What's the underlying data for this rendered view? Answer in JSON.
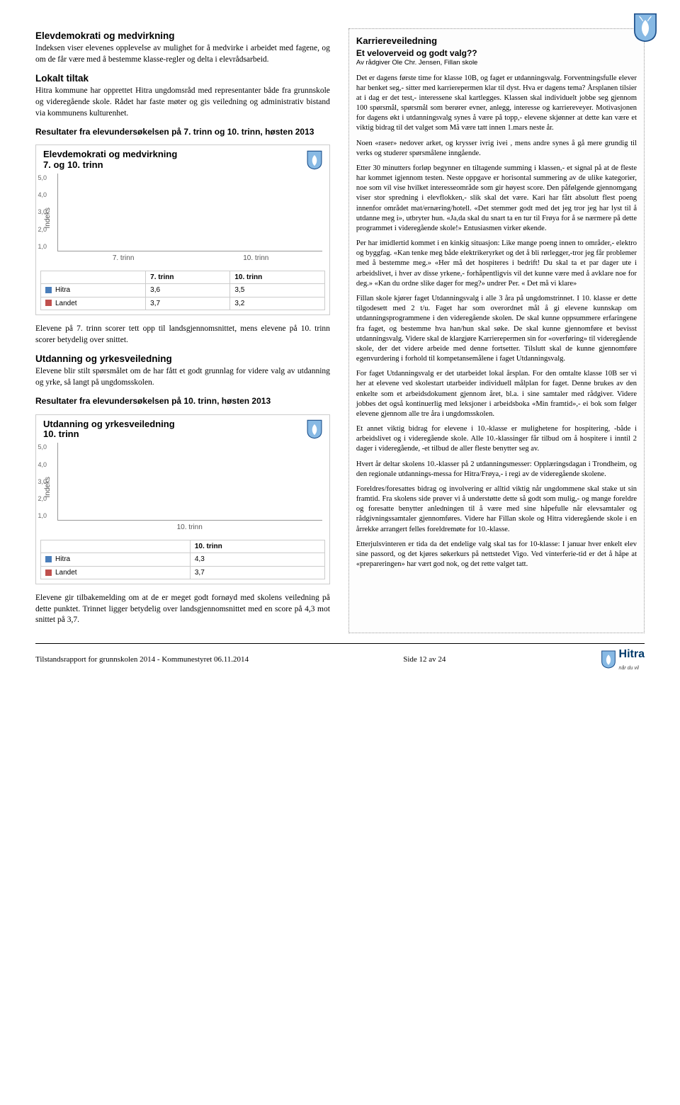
{
  "header_logo_colors": {
    "shield": "#87b9e4",
    "outline": "#1c4f8b",
    "deer": "#ffffff"
  },
  "left": {
    "sec1_title": "Elevdemokrati og medvirkning",
    "sec1_p1": "Indeksen viser elevenes opplevelse av mulighet for å medvirke i arbeidet med fagene, og om de får være med å bestemme klasse-regler og delta i elevrådsarbeid.",
    "sec1_sub": "Lokalt tiltak",
    "sec1_p2": "Hitra kommune har opprettet Hitra ungdomsråd med representanter både fra grunnskole og videregående skole. Rådet har faste møter og gis veiledning og administrativ bistand via kommunens kulturenhet.",
    "sec1_res": "Resultater fra elevundersøkelsen på 7. trinn og 10. trinn, høsten 2013",
    "chart1": {
      "title_line1": "Elevdemokrati og medvirkning",
      "title_line2": "7. og 10. trinn",
      "ylabel": "Indeks",
      "ylim_max": 5.0,
      "yticks": [
        "5,0",
        "4,0",
        "3,0",
        "2,0",
        "1,0"
      ],
      "categories": [
        "7. trinn",
        "10. trinn"
      ],
      "series": [
        {
          "name": "Hitra",
          "color": "#4a7ebb",
          "values": [
            3.6,
            3.5
          ]
        },
        {
          "name": "Landet",
          "color": "#c0504d",
          "values": [
            3.7,
            3.2
          ]
        }
      ],
      "cells": [
        "3,6",
        "3,5",
        "3,7",
        "3,2"
      ]
    },
    "sec1_p3": "Elevene på 7. trinn scorer tett opp til landsgjennomsnittet, mens elevene på 10. trinn scorer betydelig over snittet.",
    "sec2_title": "Utdanning og yrkesveiledning",
    "sec2_p1": "Elevene blir stilt spørsmålet om de har fått et godt grunnlag for videre valg av utdanning og yrke, så langt på ungdomsskolen.",
    "sec2_res": "Resultater fra elevundersøkelsen på 10. trinn, høsten 2013",
    "chart2": {
      "title_line1": "Utdanning og yrkesveiledning",
      "title_line2": "10. trinn",
      "ylabel": "Indeks",
      "ylim_max": 5.0,
      "yticks": [
        "5,0",
        "4,0",
        "3,0",
        "2,0",
        "1,0"
      ],
      "categories": [
        "10. trinn"
      ],
      "series": [
        {
          "name": "Hitra",
          "color": "#4a7ebb",
          "values": [
            4.3
          ]
        },
        {
          "name": "Landet",
          "color": "#c0504d",
          "values": [
            3.7
          ]
        }
      ],
      "cells": [
        "4,3",
        "3,7"
      ]
    },
    "sec2_p2": "Elevene gir tilbakemelding om at de er meget godt fornøyd med skolens veiledning på dette punktet. Trinnet ligger betydelig over landsgjennomsnittet med en score på 4,3 mot snittet på 3,7."
  },
  "right": {
    "h1": "Karriereveiledning",
    "h2": "Et veloverveid og godt valg??",
    "byline": "Av rådgiver Ole Chr. Jensen, Fillan skole",
    "paras": [
      "Det er dagens første time for klasse 10B, og faget er utdanningsvalg. Forventningsfulle elever har benket seg,- sitter med karrierepermen klar til dyst. Hva er dagens tema? Årsplanen tilsier at i dag er det test,- interessene skal kartlegges. Klassen skal individuelt jobbe seg gjennom 100 spørsmål, spørsmål som berører evner, anlegg, interesse og karriereveyer. Motivasjonen for dagens økt i utdanningsvalg synes å være på topp,- elevene skjønner at dette kan være et viktig bidrag til det valget som Må være tatt innen 1.mars neste år.",
      "Noen «raser» nedover arket, og krysser ivrig ivei , mens andre synes å gå mere grundig til verks og studerer spørsmålene inngående.",
      "Etter 30 minutters forløp begynner en tiltagende summing i klassen,- et signal på at de fleste har kommet igjennom testen. Neste oppgave er horisontal summering av de ulike kategorier, noe som vil vise hvilket interesseområde som  gir høyest score. Den påfølgende gjennomgang viser stor spredning i elevflokken,- slik skal det være.  Kari har fått absolutt flest poeng innenfor området mat/ernæring/hotell. «Det stemmer godt med det jeg tror jeg har lyst til å utdanne meg i», utbryter hun. «Ja,da skal du snart ta en tur til Frøya for å se nærmere på dette programmet i videregående skole!» Entusiasmen virker økende.",
      "Per har imidlertid kommet i en kinkig situasjon: Like mange poeng innen to områder,- elektro og byggfag. «Kan tenke meg både elektrikeryrket og det å bli rørlegger,-tror jeg får problemer med å bestemme meg.» «Her må det hospiteres i bedrift! Du skal ta et par dager ute i arbeidslivet, i hver av disse yrkene,- forhåpentligvis vil det kunne være med å avklare noe for deg.» «Kan du ordne slike dager for meg?» undrer Per. « Det må vi klare»",
      "Fillan skole kjører faget Utdanningsvalg i alle 3 åra på ungdomstrinnet. I 10. klasse er dette tilgodesett med 2 t/u. Faget har som overordnet mål å gi elevene kunnskap om utdanningsprogrammene i den  videregående skolen. De skal kunne oppsummere erfaringene fra faget, og bestemme hva han/hun skal søke. De skal kunne gjennomføre et bevisst utdanningsvalg. Videre skal de klargjøre Karrierepermen sin for «overføring» til videregående skole, der det videre arbeide med denne fortsetter. Tilslutt skal de kunne gjennomføre egenvurdering i forhold til kompetansemålene i faget Utdanningsvalg.",
      "For faget Utdanningsvalg er det utarbeidet lokal årsplan. For den omtalte klasse 10B ser vi her at elevene ved skolestart utarbeider individuell målplan for faget. Denne brukes av den enkelte som  et arbeidsdokument gjennom året, bl.a. i sine samtaler med rådgiver. Videre jobbes det også kontinuerlig med leksjoner i arbeidsboka «Min framtid»,- ei bok som følger elevene gjennom alle tre åra i ungdomsskolen.",
      "Et annet viktig bidrag for elevene i 10.-klasse er mulighetene for hospitering, -både i arbeidslivet og i videregående skole. Alle 10.-klassinger får tilbud om å hospitere i inntil 2 dager i videregående, -et tilbud de aller fleste benytter seg av.",
      "Hvert år deltar skolens 10.-klasser på 2 utdanningsmesser: Opplæringsdagan i Trondheim, og den regionale utdannings-messa for Hitra/Frøya,- i regi av de videregående skolene.",
      "Foreldres/foresattes bidrag og involvering er alltid viktig når ungdommene skal stake ut sin framtid. Fra skolens side prøver vi å understøtte dette så godt som mulig,- og mange foreldre og foresatte benytter anledningen til å være med sine håpefulle når elevsamtaler og rådgivningssamtaler gjennomføres. Videre har Fillan skole og Hitra videregående skole i en årrekke arrangert felles foreldremøte for 10.-klasse.",
      "Etterjulsvinteren er tida da det endelige valg skal tas for 10-klasse: I januar hver enkelt elev sine passord, og det kjøres søkerkurs på nettstedet Vigo. Ved vinterferie-tid er det å håpe at «prepareringen» har vært god nok,  og det rette valget tatt."
    ]
  },
  "footer": {
    "left": "Tilstandsrapport for grunnskolen 2014 - Kommunestyret 06.11.2014",
    "mid": "Side 12 av 24",
    "brand": "Hitra",
    "slogan": "når du vil"
  }
}
